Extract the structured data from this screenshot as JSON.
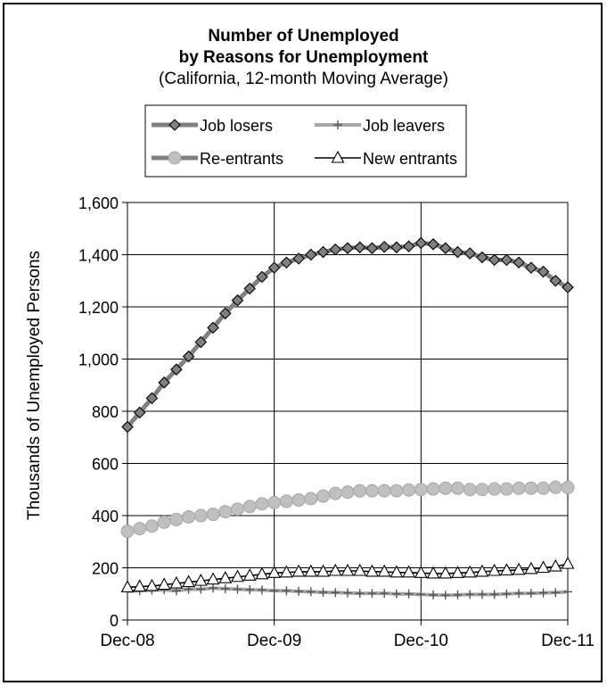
{
  "chart_data": {
    "type": "line",
    "title": "Number of Unemployed",
    "title_line2": "by Reasons for Unemployment",
    "subtitle": "(California, 12-month Moving Average)",
    "ylabel": "Thousands of Unemployed Persons",
    "xlabel": "",
    "ylim": [
      0,
      1600
    ],
    "yticks": [
      0,
      200,
      400,
      600,
      800,
      1000,
      1200,
      1400,
      1600
    ],
    "ytick_labels": [
      "0",
      "200",
      "400",
      "600",
      "800",
      "1,000",
      "1,200",
      "1,400",
      "1,600"
    ],
    "xtick_labels": [
      "Dec-08",
      "Dec-09",
      "Dec-10",
      "Dec-11"
    ],
    "grid": true,
    "legend_position": "top",
    "n_points": 37,
    "series": [
      {
        "name": "Job losers",
        "color": "#808080",
        "marker": "diamond",
        "values": [
          740,
          795,
          850,
          910,
          960,
          1010,
          1065,
          1120,
          1175,
          1225,
          1270,
          1315,
          1350,
          1370,
          1385,
          1400,
          1410,
          1420,
          1425,
          1428,
          1425,
          1430,
          1428,
          1432,
          1445,
          1440,
          1425,
          1410,
          1405,
          1390,
          1380,
          1380,
          1370,
          1350,
          1335,
          1300,
          1275
        ]
      },
      {
        "name": "Job leavers",
        "color": "#a6a6a6",
        "marker": "plus",
        "values": [
          110,
          112,
          114,
          116,
          112,
          118,
          118,
          122,
          120,
          118,
          116,
          115,
          112,
          112,
          110,
          108,
          106,
          105,
          104,
          102,
          102,
          102,
          100,
          100,
          98,
          96,
          95,
          96,
          98,
          98,
          98,
          100,
          102,
          102,
          104,
          105,
          108
        ]
      },
      {
        "name": "Re-entrants",
        "color": "#c0c0c0",
        "marker": "circle",
        "values": [
          340,
          350,
          360,
          375,
          385,
          395,
          400,
          405,
          415,
          425,
          435,
          445,
          450,
          455,
          460,
          465,
          475,
          485,
          490,
          495,
          495,
          495,
          495,
          498,
          500,
          502,
          505,
          505,
          500,
          500,
          502,
          502,
          505,
          505,
          505,
          508,
          508
        ]
      },
      {
        "name": "New entrants",
        "color": "#000000",
        "marker": "triangle",
        "values": [
          125,
          128,
          130,
          135,
          140,
          145,
          150,
          155,
          160,
          165,
          170,
          175,
          180,
          182,
          185,
          185,
          185,
          188,
          188,
          188,
          185,
          185,
          182,
          182,
          180,
          178,
          178,
          180,
          182,
          185,
          188,
          190,
          192,
          195,
          200,
          205,
          215
        ]
      }
    ]
  }
}
